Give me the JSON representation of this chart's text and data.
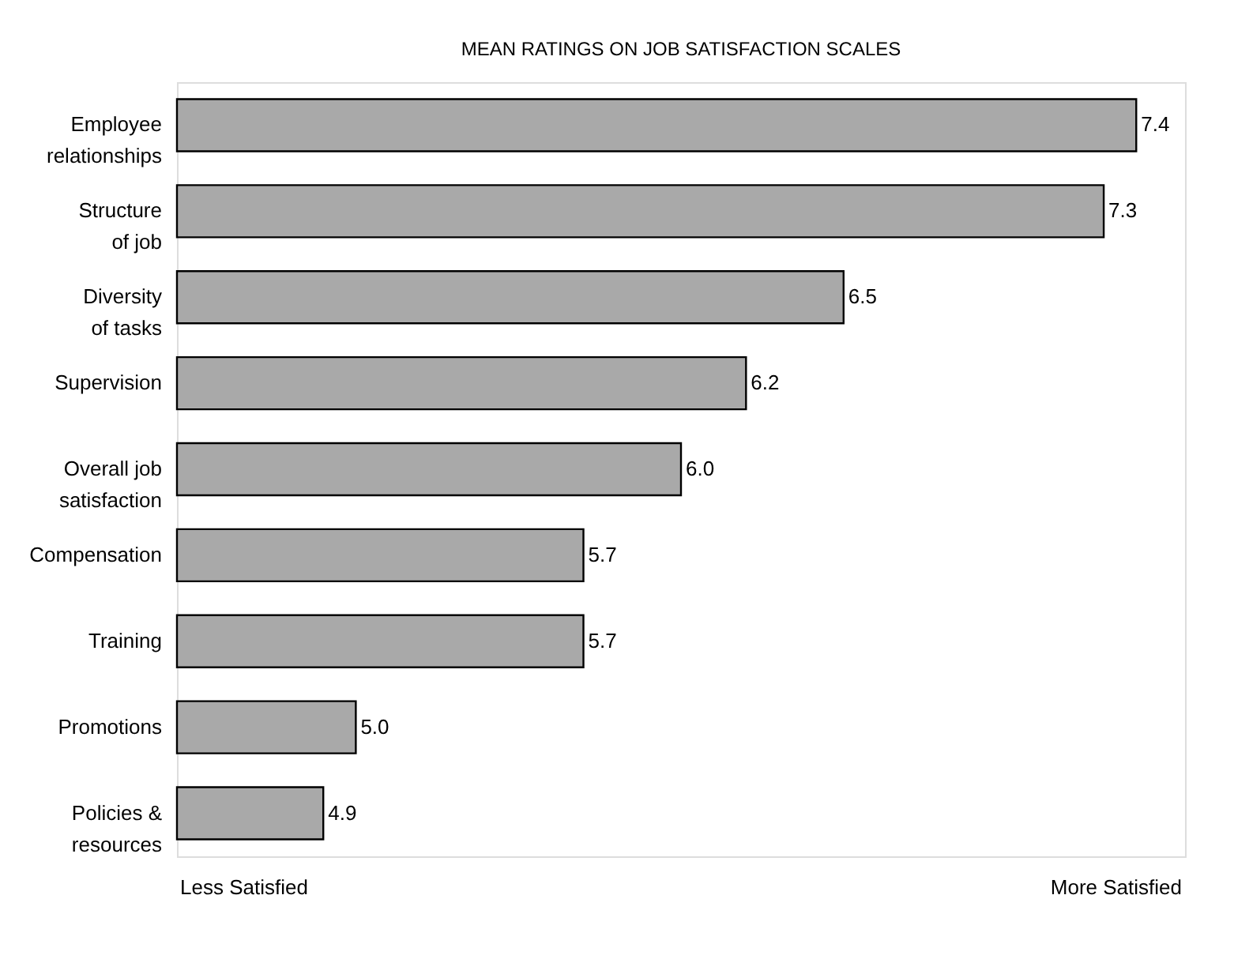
{
  "chart_data": {
    "type": "bar",
    "orientation": "horizontal",
    "title": "MEAN RATINGS ON JOB SATISFACTION SCALES",
    "categories": [
      "Employee\nrelationships",
      "Structure\nof job",
      "Diversity\nof tasks",
      "Supervision",
      "Overall job\nsatisfaction",
      "Compensation",
      "Training",
      "Promotions",
      "Policies &\nresources"
    ],
    "values": [
      7.4,
      7.3,
      6.5,
      6.2,
      6.0,
      5.7,
      5.7,
      5.0,
      4.9
    ],
    "value_labels": [
      "7.4",
      "7.3",
      "6.5",
      "6.2",
      "6.0",
      "5.7",
      "5.7",
      "5.0",
      "4.9"
    ],
    "color": "#a9a9a9",
    "xlim": [
      4.45,
      7.55
    ],
    "annotations": [
      "Less Satisfied",
      "More Satisfied"
    ]
  }
}
